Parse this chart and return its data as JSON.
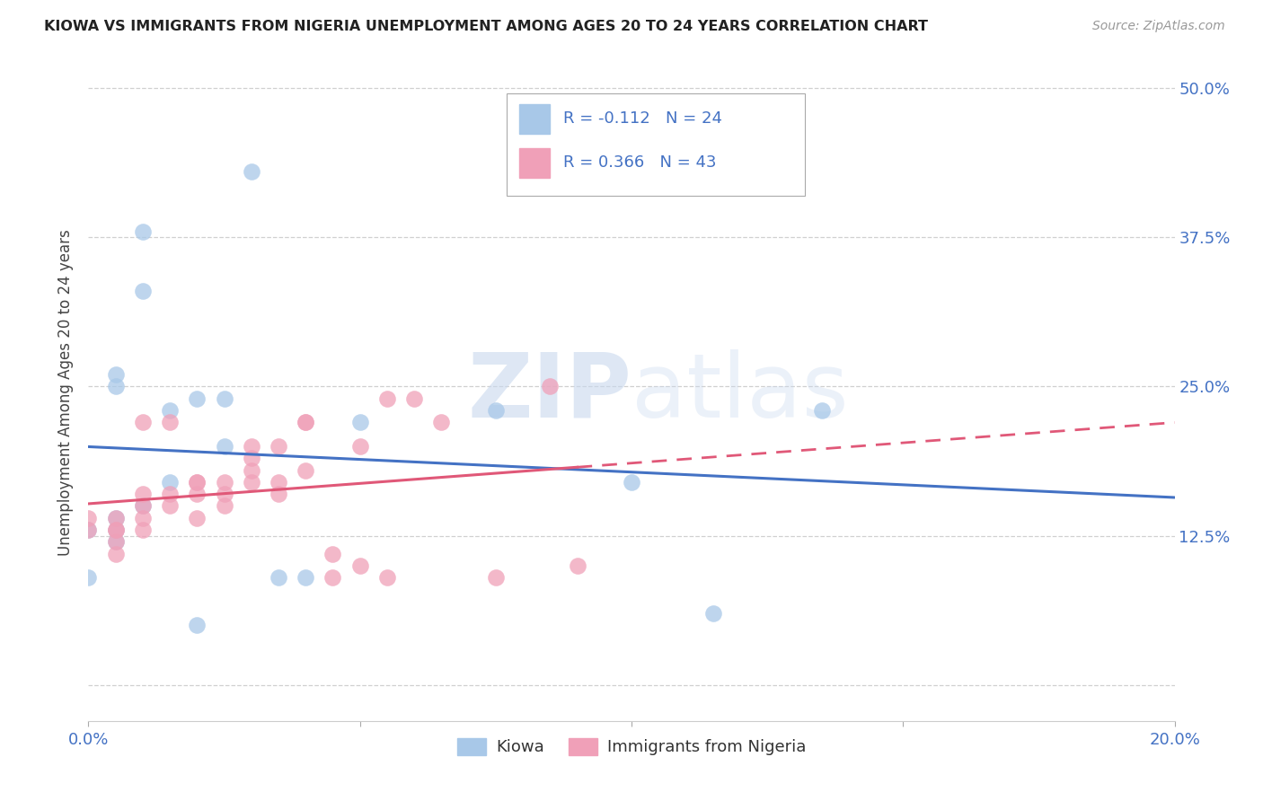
{
  "title": "KIOWA VS IMMIGRANTS FROM NIGERIA UNEMPLOYMENT AMONG AGES 20 TO 24 YEARS CORRELATION CHART",
  "source": "Source: ZipAtlas.com",
  "ylabel": "Unemployment Among Ages 20 to 24 years",
  "legend_label1": "Kiowa",
  "legend_label2": "Immigrants from Nigeria",
  "r1": "-0.112",
  "n1": "24",
  "r2": "0.366",
  "n2": "43",
  "color_blue": "#a8c8e8",
  "color_pink": "#f0a0b8",
  "color_blue_line": "#4472c4",
  "color_pink_line": "#e05878",
  "x_min": 0.0,
  "x_max": 0.2,
  "y_min": -0.03,
  "y_max": 0.52,
  "yticks": [
    0.0,
    0.125,
    0.25,
    0.375,
    0.5
  ],
  "ytick_labels": [
    "",
    "12.5%",
    "25.0%",
    "37.5%",
    "50.0%"
  ],
  "xticks": [
    0.0,
    0.05,
    0.1,
    0.15,
    0.2
  ],
  "xtick_labels": [
    "0.0%",
    "",
    "",
    "",
    "20.0%"
  ],
  "kiowa_x": [
    0.0,
    0.0,
    0.005,
    0.005,
    0.005,
    0.005,
    0.005,
    0.01,
    0.01,
    0.01,
    0.015,
    0.015,
    0.02,
    0.02,
    0.025,
    0.025,
    0.03,
    0.035,
    0.04,
    0.05,
    0.075,
    0.1,
    0.115,
    0.135
  ],
  "kiowa_y": [
    0.13,
    0.09,
    0.14,
    0.13,
    0.12,
    0.26,
    0.25,
    0.15,
    0.38,
    0.33,
    0.23,
    0.17,
    0.24,
    0.05,
    0.24,
    0.2,
    0.43,
    0.09,
    0.09,
    0.22,
    0.23,
    0.17,
    0.06,
    0.23
  ],
  "nigeria_x": [
    0.0,
    0.0,
    0.005,
    0.005,
    0.005,
    0.005,
    0.005,
    0.01,
    0.01,
    0.01,
    0.01,
    0.01,
    0.015,
    0.015,
    0.015,
    0.02,
    0.02,
    0.02,
    0.02,
    0.025,
    0.025,
    0.025,
    0.03,
    0.03,
    0.03,
    0.03,
    0.035,
    0.035,
    0.035,
    0.04,
    0.04,
    0.04,
    0.045,
    0.045,
    0.05,
    0.05,
    0.055,
    0.055,
    0.06,
    0.065,
    0.075,
    0.085,
    0.09
  ],
  "nigeria_y": [
    0.13,
    0.14,
    0.11,
    0.12,
    0.13,
    0.13,
    0.14,
    0.13,
    0.14,
    0.15,
    0.16,
    0.22,
    0.15,
    0.16,
    0.22,
    0.14,
    0.16,
    0.17,
    0.17,
    0.15,
    0.16,
    0.17,
    0.17,
    0.18,
    0.19,
    0.2,
    0.16,
    0.17,
    0.2,
    0.18,
    0.22,
    0.22,
    0.11,
    0.09,
    0.1,
    0.2,
    0.24,
    0.09,
    0.24,
    0.22,
    0.09,
    0.25,
    0.1
  ],
  "watermark_zip": "ZIP",
  "watermark_atlas": "atlas",
  "background_color": "#ffffff",
  "grid_color": "#d0d0d0"
}
